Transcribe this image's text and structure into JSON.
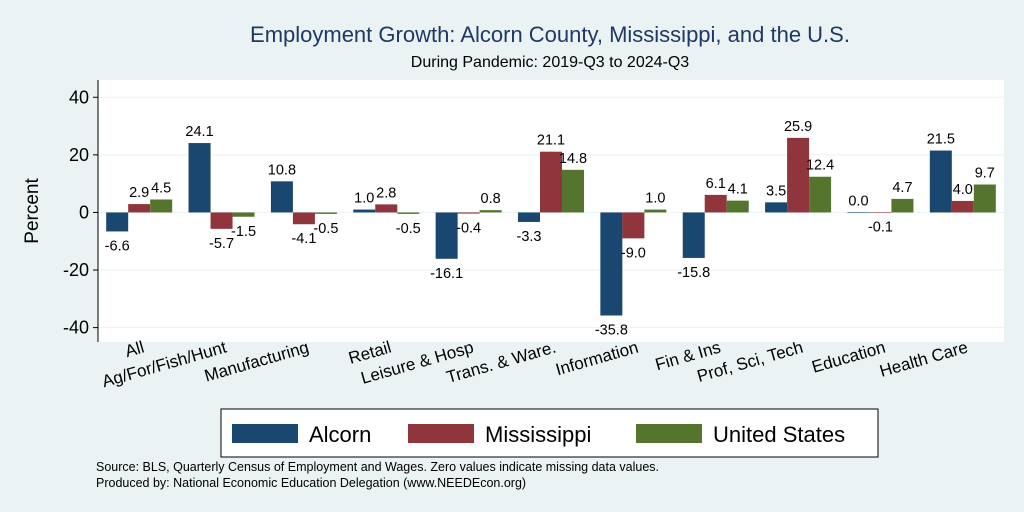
{
  "chart_data": {
    "type": "bar",
    "title": "Employment Growth: Alcorn County, Mississippi, and the U.S.",
    "subtitle": "During Pandemic: 2019-Q3 to 2024-Q3",
    "ylabel": "Percent",
    "ylim": [
      -45,
      46
    ],
    "yticks": [
      -40,
      -20,
      0,
      20,
      40
    ],
    "grid": true,
    "legend_position": "bottom",
    "categories": [
      "All",
      "Ag/For/Fish/Hunt",
      "Manufacturing",
      "Retail",
      "Leisure & Hosp",
      "Trans. & Ware.",
      "Information",
      "Fin & Ins",
      "Prof, Sci, Tech",
      "Education",
      "Health Care"
    ],
    "series": [
      {
        "name": "Alcorn",
        "color": "#1a476f",
        "values": [
          -6.6,
          24.1,
          10.8,
          1.0,
          -16.1,
          -3.3,
          -35.8,
          -15.8,
          3.5,
          0.0,
          21.5
        ]
      },
      {
        "name": "Mississippi",
        "color": "#90353b",
        "values": [
          2.9,
          -5.7,
          -4.1,
          2.8,
          -0.4,
          21.1,
          -9.0,
          6.1,
          25.9,
          -0.1,
          4.0
        ]
      },
      {
        "name": "United States",
        "color": "#55752f",
        "values": [
          4.5,
          -1.5,
          -0.5,
          -0.5,
          0.8,
          14.8,
          1.0,
          4.1,
          12.4,
          4.7,
          9.7
        ]
      }
    ],
    "data_labels": [
      [
        "-6.6",
        "2.9",
        "4.5"
      ],
      [
        "24.1",
        "-5.7",
        "-1.5"
      ],
      [
        "10.8",
        "-4.1",
        "-0.5"
      ],
      [
        "1.0",
        "2.8",
        "-0.5"
      ],
      [
        "-16.1",
        "-0.4",
        "0.8"
      ],
      [
        "-3.3",
        "21.1",
        "14.8"
      ],
      [
        "-35.8",
        "-9.0",
        "1.0"
      ],
      [
        "-15.8",
        "6.1",
        "4.1"
      ],
      [
        "3.5",
        "25.9",
        "12.4"
      ],
      [
        "0.0",
        "-0.1",
        "4.7"
      ],
      [
        "21.5",
        "4.0",
        "9.7"
      ]
    ]
  },
  "notes": {
    "source": "Source: BLS, Quarterly Census of Employment and Wages. Zero values indicate missing data values.",
    "produced": "Produced by: National Economic Education Delegation (www.NEEDEcon.org)"
  },
  "colors": {
    "background": "#eaf2f3",
    "plot_background": "#ffffff",
    "title": "#1f3864",
    "grid": "#eaf2f3"
  }
}
